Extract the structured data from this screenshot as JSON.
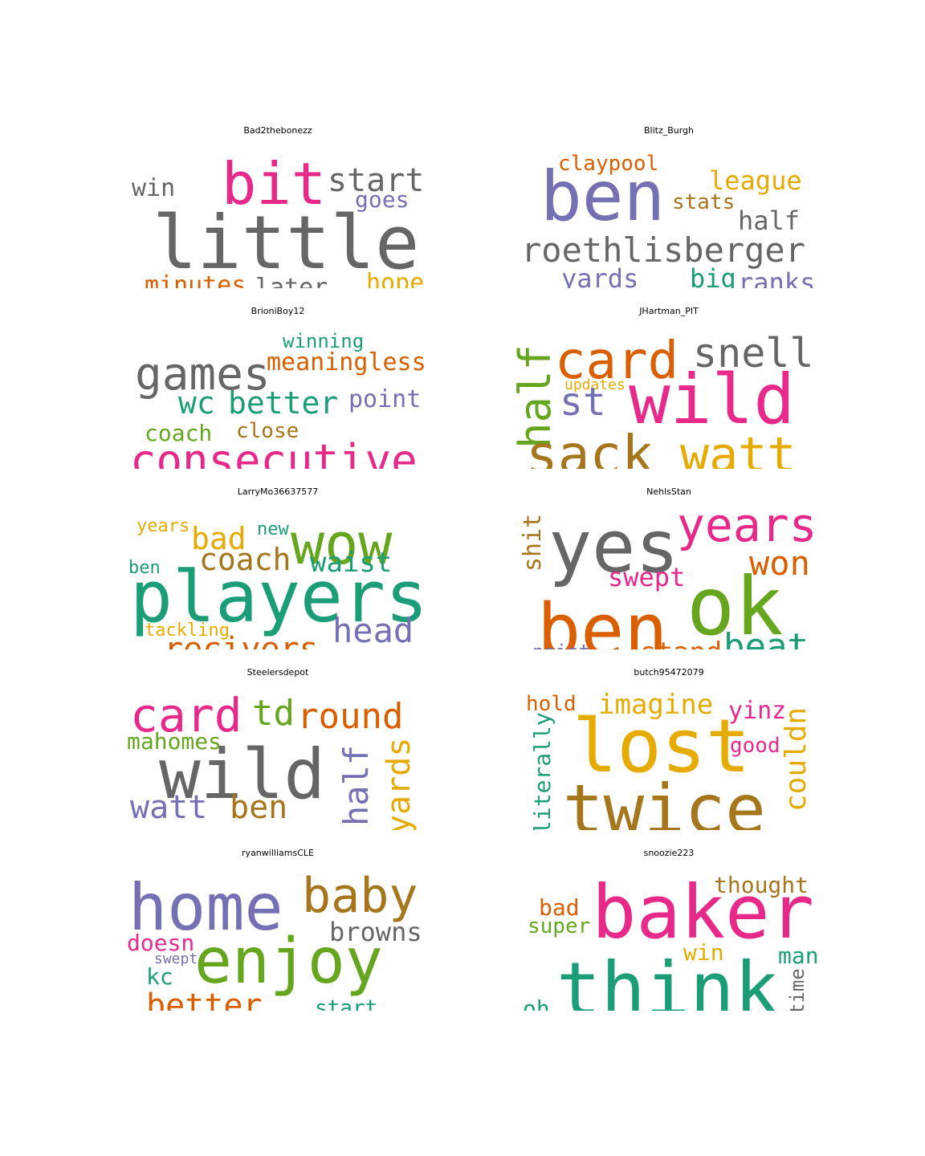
{
  "palette": {
    "gray": "#666666",
    "pink": "#e7298a",
    "purple": "#7570b3",
    "green": "#1b9e77",
    "orange": "#d95f02",
    "yellow": "#e6ab02",
    "brown": "#a6761d",
    "lime": "#66a61e"
  },
  "panels": [
    {
      "title": "Bad2thebonezz",
      "words": [
        {
          "text": "little",
          "color": "gray"
        },
        {
          "text": "bit",
          "color": "pink"
        },
        {
          "text": "start",
          "color": "gray"
        },
        {
          "text": "win",
          "color": "gray"
        },
        {
          "text": "goes",
          "color": "purple"
        },
        {
          "text": "minutes",
          "color": "orange"
        },
        {
          "text": "later",
          "color": "gray"
        },
        {
          "text": "hope",
          "color": "yellow"
        }
      ]
    },
    {
      "title": "Blitz_Burgh",
      "words": [
        {
          "text": "ben",
          "color": "purple"
        },
        {
          "text": "claypool",
          "color": "orange"
        },
        {
          "text": "league",
          "color": "yellow"
        },
        {
          "text": "stats",
          "color": "brown"
        },
        {
          "text": "half",
          "color": "gray"
        },
        {
          "text": "roethlisberger",
          "color": "gray"
        },
        {
          "text": "yards",
          "color": "purple"
        },
        {
          "text": "big",
          "color": "green"
        },
        {
          "text": "ranks",
          "color": "purple"
        }
      ]
    },
    {
      "title": "BrioniBoy12",
      "words": [
        {
          "text": "games",
          "color": "gray"
        },
        {
          "text": "winning",
          "color": "green"
        },
        {
          "text": "meaningless",
          "color": "orange"
        },
        {
          "text": "wc",
          "color": "green"
        },
        {
          "text": "better",
          "color": "green"
        },
        {
          "text": "point",
          "color": "purple"
        },
        {
          "text": "coach",
          "color": "lime"
        },
        {
          "text": "close",
          "color": "brown"
        },
        {
          "text": "consecutive",
          "color": "pink"
        }
      ]
    },
    {
      "title": "JHartman_PIT",
      "words": [
        {
          "text": "card",
          "color": "orange"
        },
        {
          "text": "snell",
          "color": "gray"
        },
        {
          "text": "half",
          "color": "lime"
        },
        {
          "text": "updates",
          "color": "yellow"
        },
        {
          "text": "st",
          "color": "purple"
        },
        {
          "text": "wild",
          "color": "pink"
        },
        {
          "text": "sack",
          "color": "brown"
        },
        {
          "text": "watt",
          "color": "yellow"
        }
      ]
    },
    {
      "title": "LarryMo36637577",
      "words": [
        {
          "text": "wow",
          "color": "lime"
        },
        {
          "text": "years",
          "color": "yellow"
        },
        {
          "text": "bad",
          "color": "yellow"
        },
        {
          "text": "new",
          "color": "green"
        },
        {
          "text": "coach",
          "color": "brown"
        },
        {
          "text": "waist",
          "color": "green"
        },
        {
          "text": "ben",
          "color": "green"
        },
        {
          "text": "players",
          "color": "green"
        },
        {
          "text": "tackling",
          "color": "yellow"
        },
        {
          "text": "head",
          "color": "purple"
        },
        {
          "text": "recivers",
          "color": "orange"
        }
      ]
    },
    {
      "title": "NehlsStan",
      "words": [
        {
          "text": "yes",
          "color": "gray"
        },
        {
          "text": "years",
          "color": "pink"
        },
        {
          "text": "shit",
          "color": "brown"
        },
        {
          "text": "won",
          "color": "orange"
        },
        {
          "text": "swept",
          "color": "pink"
        },
        {
          "text": "ben",
          "color": "orange"
        },
        {
          "text": "ok",
          "color": "lime"
        },
        {
          "text": "beat",
          "color": "green"
        },
        {
          "text": "point",
          "color": "purple"
        },
        {
          "text": "stand",
          "color": "orange"
        }
      ]
    },
    {
      "title": "Steelersdepot",
      "words": [
        {
          "text": "card",
          "color": "pink"
        },
        {
          "text": "td",
          "color": "lime"
        },
        {
          "text": "round",
          "color": "orange"
        },
        {
          "text": "mahomes",
          "color": "lime"
        },
        {
          "text": "wild",
          "color": "gray"
        },
        {
          "text": "half",
          "color": "purple"
        },
        {
          "text": "yards",
          "color": "yellow"
        },
        {
          "text": "watt",
          "color": "purple"
        },
        {
          "text": "ben",
          "color": "brown"
        }
      ]
    },
    {
      "title": "butch95472079",
      "words": [
        {
          "text": "hold",
          "color": "orange"
        },
        {
          "text": "imagine",
          "color": "yellow"
        },
        {
          "text": "yinz",
          "color": "pink"
        },
        {
          "text": "lost",
          "color": "yellow"
        },
        {
          "text": "good",
          "color": "pink"
        },
        {
          "text": "literally",
          "color": "green"
        },
        {
          "text": "couldn",
          "color": "yellow"
        },
        {
          "text": "twice",
          "color": "brown"
        }
      ]
    },
    {
      "title": "ryanwilliamsCLE",
      "words": [
        {
          "text": "home",
          "color": "purple"
        },
        {
          "text": "baby",
          "color": "brown"
        },
        {
          "text": "browns",
          "color": "gray"
        },
        {
          "text": "doesn",
          "color": "pink"
        },
        {
          "text": "swept",
          "color": "purple"
        },
        {
          "text": "enjoy",
          "color": "lime"
        },
        {
          "text": "kc",
          "color": "green"
        },
        {
          "text": "better",
          "color": "orange"
        },
        {
          "text": "start",
          "color": "green"
        }
      ]
    },
    {
      "title": "snoozie223",
      "words": [
        {
          "text": "thought",
          "color": "brown"
        },
        {
          "text": "bad",
          "color": "orange"
        },
        {
          "text": "baker",
          "color": "pink"
        },
        {
          "text": "super",
          "color": "lime"
        },
        {
          "text": "win",
          "color": "yellow"
        },
        {
          "text": "man",
          "color": "green"
        },
        {
          "text": "think",
          "color": "green"
        },
        {
          "text": "time",
          "color": "gray"
        },
        {
          "text": "oh",
          "color": "green"
        }
      ]
    }
  ]
}
